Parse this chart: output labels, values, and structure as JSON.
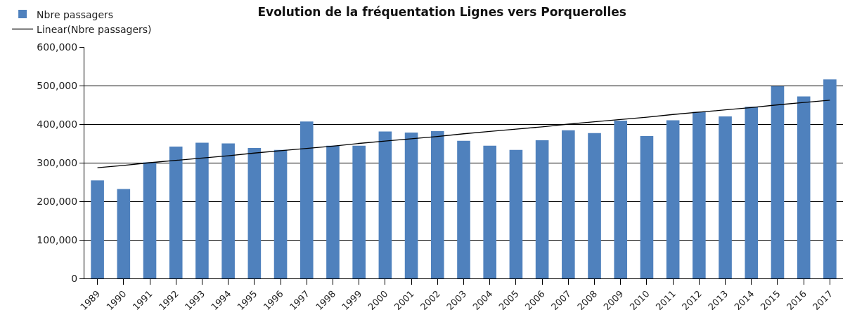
{
  "chart_data": {
    "type": "bar",
    "title": "Evolution de la fréquentation Lignes vers Porquerolles",
    "categories": [
      "1989",
      "1990",
      "1991",
      "1992",
      "1993",
      "1994",
      "1995",
      "1996",
      "1997",
      "1998",
      "1999",
      "2000",
      "2001",
      "2002",
      "2003",
      "2004",
      "2005",
      "2006",
      "2007",
      "2008",
      "2009",
      "2010",
      "2011",
      "2012",
      "2013",
      "2014",
      "2015",
      "2016",
      "2017"
    ],
    "series": [
      {
        "name": "Nbre passagers",
        "color": "#4f81bd",
        "values": [
          254000,
          232000,
          301000,
          342000,
          352000,
          350000,
          338000,
          333000,
          407000,
          344000,
          344000,
          381000,
          378000,
          382000,
          357000,
          344000,
          333000,
          358000,
          384000,
          377000,
          409000,
          369000,
          410000,
          432000,
          420000,
          445000,
          498000,
          472000,
          516000
        ]
      },
      {
        "name": "Linear(Nbre passagers)",
        "type": "line",
        "color": "#000000",
        "values": [
          287000,
          293000,
          300000,
          306000,
          312000,
          318000,
          325000,
          331000,
          337000,
          343000,
          350000,
          356000,
          362000,
          368000,
          375000,
          381000,
          387000,
          393000,
          400000,
          406000,
          412000,
          418000,
          425000,
          431000,
          437000,
          443000,
          450000,
          456000,
          462000
        ],
        "marker": "none",
        "line_style": "solid"
      }
    ],
    "ylim": [
      0,
      600000
    ],
    "yticks": [
      {
        "value": 0,
        "label": "0"
      },
      {
        "value": 100000,
        "label": "100,000"
      },
      {
        "value": 200000,
        "label": "200,000"
      },
      {
        "value": 300000,
        "label": "300,000"
      },
      {
        "value": 400000,
        "label": "400,000"
      },
      {
        "value": 500000,
        "label": "500,000"
      },
      {
        "value": 600000,
        "label": "600,000"
      }
    ],
    "grid": "y",
    "legend": "top left"
  }
}
